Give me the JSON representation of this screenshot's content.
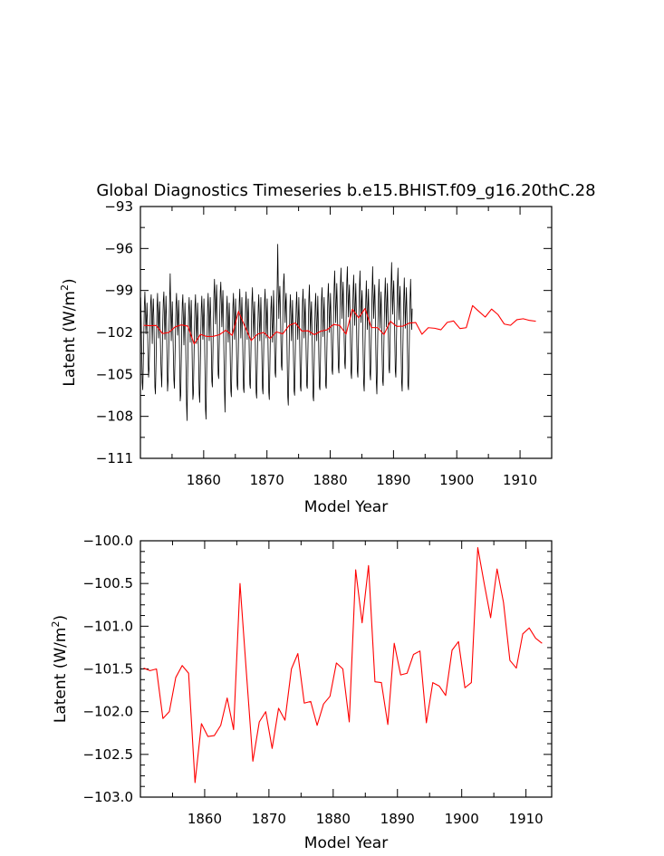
{
  "chart_data": [
    {
      "type": "line",
      "title": "Global Diagnostics Timeseries b.e15.BHIST.f09_g16.20thC.28",
      "xlabel": "Model Year",
      "ylabel": "Latent (W/m²)",
      "ylabel_base": "Latent (W/m",
      "ylabel_sup": "2",
      "ylabel_end": ")",
      "xlim": [
        1850,
        1915
      ],
      "ylim": [
        -111,
        -93
      ],
      "x_ticks": [
        1860,
        1870,
        1880,
        1890,
        1900,
        1910
      ],
      "x_tick_labels": [
        "1860",
        "1870",
        "1880",
        "1890",
        "1900",
        "1910"
      ],
      "y_ticks": [
        -111,
        -108,
        -105,
        -102,
        -99,
        -96,
        -93
      ],
      "y_tick_labels": [
        "−111",
        "−108",
        "−105",
        "−102",
        "−99",
        "−96",
        "−93"
      ],
      "grid": false,
      "series": [
        {
          "role": "monthly",
          "color": "#000000",
          "x_start": 1850.04,
          "x_step": 0.08333,
          "values": [
            -99.5,
            -101.2,
            -103.4,
            -105.6,
            -106.1,
            -104.2,
            -102.0,
            -100.1,
            -99.1,
            -100.4,
            -102.1,
            -101.0,
            -99.9,
            -101.5,
            -103.9,
            -105.2,
            -104.6,
            -103.0,
            -101.3,
            -99.8,
            -99.3,
            -101.0,
            -102.8,
            -100.6,
            -99.6,
            -101.0,
            -103.2,
            -105.9,
            -106.4,
            -104.5,
            -102.3,
            -100.2,
            -99.2,
            -100.9,
            -102.4,
            -100.7,
            -99.8,
            -101.6,
            -103.8,
            -105.0,
            -105.9,
            -103.6,
            -101.2,
            -99.7,
            -99.1,
            -100.8,
            -102.5,
            -101.0,
            -99.4,
            -101.1,
            -104.0,
            -106.2,
            -105.5,
            -103.8,
            -101.5,
            -99.6,
            -97.8,
            -100.2,
            -102.6,
            -100.9,
            -99.8,
            -101.7,
            -103.6,
            -105.4,
            -106.0,
            -104.1,
            -101.9,
            -100.0,
            -99.2,
            -100.6,
            -102.2,
            -101.1,
            -99.7,
            -101.4,
            -104.3,
            -106.9,
            -106.5,
            -104.0,
            -101.6,
            -99.9,
            -99.3,
            -101.0,
            -102.9,
            -101.3,
            -99.9,
            -101.8,
            -104.4,
            -107.1,
            -108.3,
            -105.4,
            -102.6,
            -100.4,
            -99.5,
            -100.9,
            -102.7,
            -101.2,
            -99.7,
            -101.9,
            -104.6,
            -106.8,
            -106.4,
            -104.2,
            -101.8,
            -100.1,
            -99.3,
            -101.0,
            -102.8,
            -101.4,
            -99.9,
            -101.6,
            -104.1,
            -106.4,
            -107.0,
            -104.8,
            -102.3,
            -100.3,
            -99.4,
            -100.9,
            -102.5,
            -101.1,
            -99.6,
            -101.7,
            -104.7,
            -107.5,
            -108.2,
            -105.3,
            -102.4,
            -100.2,
            -99.2,
            -100.8,
            -102.6,
            -101.0,
            -99.5,
            -101.0,
            -103.2,
            -105.5,
            -105.9,
            -103.7,
            -101.2,
            -99.3,
            -98.2,
            -99.8,
            -101.4,
            -99.9,
            -98.6,
            -100.3,
            -102.9,
            -105.0,
            -105.3,
            -103.0,
            -100.8,
            -99.1,
            -98.4,
            -99.9,
            -101.6,
            -100.2,
            -99.0,
            -101.0,
            -103.8,
            -106.1,
            -107.7,
            -105.0,
            -102.5,
            -100.4,
            -99.4,
            -101.0,
            -102.7,
            -101.2,
            -99.9,
            -101.6,
            -104.0,
            -106.2,
            -106.6,
            -104.4,
            -102.0,
            -100.1,
            -99.2,
            -100.9,
            -102.5,
            -101.0,
            -99.6,
            -101.3,
            -103.7,
            -105.8,
            -106.1,
            -104.0,
            -101.6,
            -99.8,
            -98.9,
            -100.6,
            -102.4,
            -100.8,
            -99.5,
            -101.4,
            -103.9,
            -106.0,
            -106.3,
            -104.3,
            -101.9,
            -100.0,
            -99.1,
            -100.7,
            -102.5,
            -101.0,
            -99.6,
            -101.2,
            -103.6,
            -105.7,
            -106.0,
            -103.9,
            -101.5,
            -99.7,
            -98.8,
            -100.5,
            -102.3,
            -100.9,
            -99.8,
            -101.7,
            -104.2,
            -106.3,
            -106.7,
            -104.5,
            -102.1,
            -100.2,
            -99.3,
            -100.9,
            -102.6,
            -101.1,
            -99.5,
            -101.3,
            -103.8,
            -106.0,
            -106.4,
            -104.1,
            -101.7,
            -99.8,
            -98.9,
            -100.6,
            -102.4,
            -100.9,
            -99.6,
            -101.5,
            -104.0,
            -106.3,
            -106.8,
            -104.6,
            -102.2,
            -100.3,
            -99.4,
            -101.0,
            -102.7,
            -101.2,
            -99.0,
            -100.6,
            -103.0,
            -104.9,
            -105.2,
            -103.1,
            -100.7,
            -98.6,
            -95.7,
            -98.8,
            -101.0,
            -99.5,
            -98.7,
            -100.3,
            -102.6,
            -104.4,
            -104.7,
            -102.6,
            -100.2,
            -98.4,
            -97.8,
            -99.6,
            -101.3,
            -99.8,
            -99.2,
            -101.3,
            -104.2,
            -106.6,
            -107.2,
            -104.9,
            -102.3,
            -100.3,
            -99.3,
            -100.9,
            -102.6,
            -101.1,
            -99.7,
            -101.6,
            -104.1,
            -106.2,
            -106.5,
            -104.3,
            -101.9,
            -100.0,
            -99.1,
            -100.8,
            -102.5,
            -101.0,
            -99.5,
            -101.2,
            -103.7,
            -105.9,
            -106.2,
            -104.0,
            -101.6,
            -99.8,
            -98.9,
            -100.6,
            -102.4,
            -100.9,
            -99.6,
            -101.4,
            -103.8,
            -105.8,
            -106.0,
            -103.9,
            -101.5,
            -99.6,
            -98.6,
            -100.4,
            -102.2,
            -100.7,
            -99.8,
            -101.8,
            -104.4,
            -106.6,
            -106.9,
            -104.6,
            -102.1,
            -100.1,
            -99.2,
            -100.9,
            -102.6,
            -101.1,
            -99.4,
            -101.3,
            -103.9,
            -105.9,
            -106.1,
            -104.0,
            -101.6,
            -99.7,
            -98.8,
            -100.5,
            -102.3,
            -100.8,
            -99.5,
            -101.4,
            -103.8,
            -105.8,
            -106.0,
            -103.8,
            -101.4,
            -99.5,
            -98.5,
            -100.2,
            -102.0,
            -100.6,
            -99.2,
            -100.8,
            -102.9,
            -104.7,
            -105.0,
            -102.9,
            -100.5,
            -98.7,
            -97.6,
            -99.5,
            -101.3,
            -99.8,
            -98.5,
            -100.2,
            -102.6,
            -104.5,
            -104.9,
            -102.8,
            -100.4,
            -98.5,
            -97.4,
            -99.2,
            -101.0,
            -99.5,
            -98.4,
            -100.1,
            -102.4,
            -104.2,
            -104.6,
            -102.6,
            -100.2,
            -98.4,
            -97.3,
            -99.2,
            -100.9,
            -99.4,
            -98.6,
            -100.4,
            -102.8,
            -104.9,
            -105.3,
            -103.2,
            -100.8,
            -99.0,
            -97.9,
            -99.7,
            -101.5,
            -100.0,
            -98.5,
            -100.3,
            -102.9,
            -104.8,
            -105.2,
            -103.0,
            -100.6,
            -98.8,
            -97.6,
            -99.5,
            -101.3,
            -99.8,
            -99.0,
            -100.9,
            -103.5,
            -105.7,
            -106.2,
            -104.1,
            -101.6,
            -99.7,
            -98.3,
            -100.0,
            -101.8,
            -100.3,
            -98.9,
            -100.7,
            -103.1,
            -105.0,
            -105.4,
            -103.3,
            -100.9,
            -99.0,
            -97.3,
            -99.2,
            -101.0,
            -99.5,
            -98.6,
            -100.5,
            -103.2,
            -105.6,
            -106.4,
            -104.0,
            -101.5,
            -99.6,
            -98.2,
            -99.9,
            -101.7,
            -100.2,
            -99.1,
            -101.0,
            -103.6,
            -105.5,
            -105.8,
            -103.7,
            -101.2,
            -99.4,
            -98.1,
            -99.8,
            -101.6,
            -100.1,
            -98.5,
            -100.3,
            -102.7,
            -104.6,
            -104.9,
            -102.8,
            -100.4,
            -98.6,
            -97.0,
            -98.9,
            -100.7,
            -99.2,
            -98.3,
            -100.1,
            -102.6,
            -104.8,
            -105.2,
            -103.0,
            -100.6,
            -98.7,
            -97.4,
            -99.3,
            -101.1,
            -99.6,
            -98.7,
            -100.6,
            -103.3,
            -105.6,
            -106.2,
            -104.0,
            -101.5,
            -99.6,
            -98.1,
            -99.9,
            -101.7,
            -100.2,
            -98.8,
            -100.6,
            -103.4,
            -105.8,
            -106.1,
            -104.0,
            -101.5,
            -99.6,
            -98.2,
            -100.0,
            -101.8,
            -100.3
          ]
        },
        {
          "role": "annual",
          "color": "#ff0000",
          "x_start": 1850.5,
          "x_step": 1.0,
          "values": [
            -101.49,
            -101.52,
            -101.5,
            -102.08,
            -102.0,
            -101.6,
            -101.46,
            -101.55,
            -102.83,
            -102.14,
            -102.29,
            -102.28,
            -102.16,
            -101.84,
            -102.21,
            -100.5,
            -101.55,
            -102.58,
            -102.12,
            -102.0,
            -102.43,
            -101.96,
            -102.1,
            -101.5,
            -101.32,
            -101.9,
            -101.88,
            -102.16,
            -101.91,
            -101.82,
            -101.43,
            -101.5,
            -102.12,
            -100.34,
            -100.96,
            -100.29,
            -101.65,
            -101.66,
            -102.15,
            -101.2,
            -101.57,
            -101.55,
            -101.33,
            -101.29,
            -102.13,
            -101.66,
            -101.7,
            -101.81,
            -101.28,
            -101.18,
            -101.72,
            -101.66,
            -100.08,
            -100.5,
            -100.9,
            -100.33,
            -100.72,
            -101.4,
            -101.49,
            -101.09,
            -101.02,
            -101.14,
            -101.2
          ]
        }
      ]
    },
    {
      "type": "line",
      "title": "",
      "xlabel": "Model Year",
      "ylabel": "Latent (W/m²)",
      "ylabel_base": "Latent (W/m",
      "ylabel_sup": "2",
      "ylabel_end": ")",
      "xlim": [
        1850,
        1914
      ],
      "ylim": [
        -103.0,
        -100.0
      ],
      "x_ticks": [
        1860,
        1870,
        1880,
        1890,
        1900,
        1910
      ],
      "x_tick_labels": [
        "1860",
        "1870",
        "1880",
        "1890",
        "1900",
        "1910"
      ],
      "y_ticks": [
        -103.0,
        -102.5,
        -102.0,
        -101.5,
        -101.0,
        -100.5,
        -100.0
      ],
      "y_tick_labels": [
        "−103.0",
        "−102.5",
        "−102.0",
        "−101.5",
        "−101.0",
        "−100.5",
        "−100.0"
      ],
      "grid": false,
      "series": [
        {
          "role": "annual",
          "color": "#ff0000",
          "x_start": 1850.5,
          "x_step": 1.0,
          "values": [
            -101.49,
            -101.52,
            -101.5,
            -102.08,
            -102.0,
            -101.6,
            -101.46,
            -101.55,
            -102.83,
            -102.14,
            -102.29,
            -102.28,
            -102.16,
            -101.84,
            -102.21,
            -100.5,
            -101.55,
            -102.58,
            -102.12,
            -102.0,
            -102.43,
            -101.96,
            -102.1,
            -101.5,
            -101.32,
            -101.9,
            -101.88,
            -102.16,
            -101.91,
            -101.82,
            -101.43,
            -101.5,
            -102.12,
            -100.34,
            -100.96,
            -100.29,
            -101.65,
            -101.66,
            -102.15,
            -101.2,
            -101.57,
            -101.55,
            -101.33,
            -101.29,
            -102.13,
            -101.66,
            -101.7,
            -101.81,
            -101.28,
            -101.18,
            -101.72,
            -101.66,
            -100.08,
            -100.5,
            -100.9,
            -100.33,
            -100.72,
            -101.4,
            -101.49,
            -101.09,
            -101.02,
            -101.14,
            -101.2
          ]
        }
      ]
    }
  ]
}
